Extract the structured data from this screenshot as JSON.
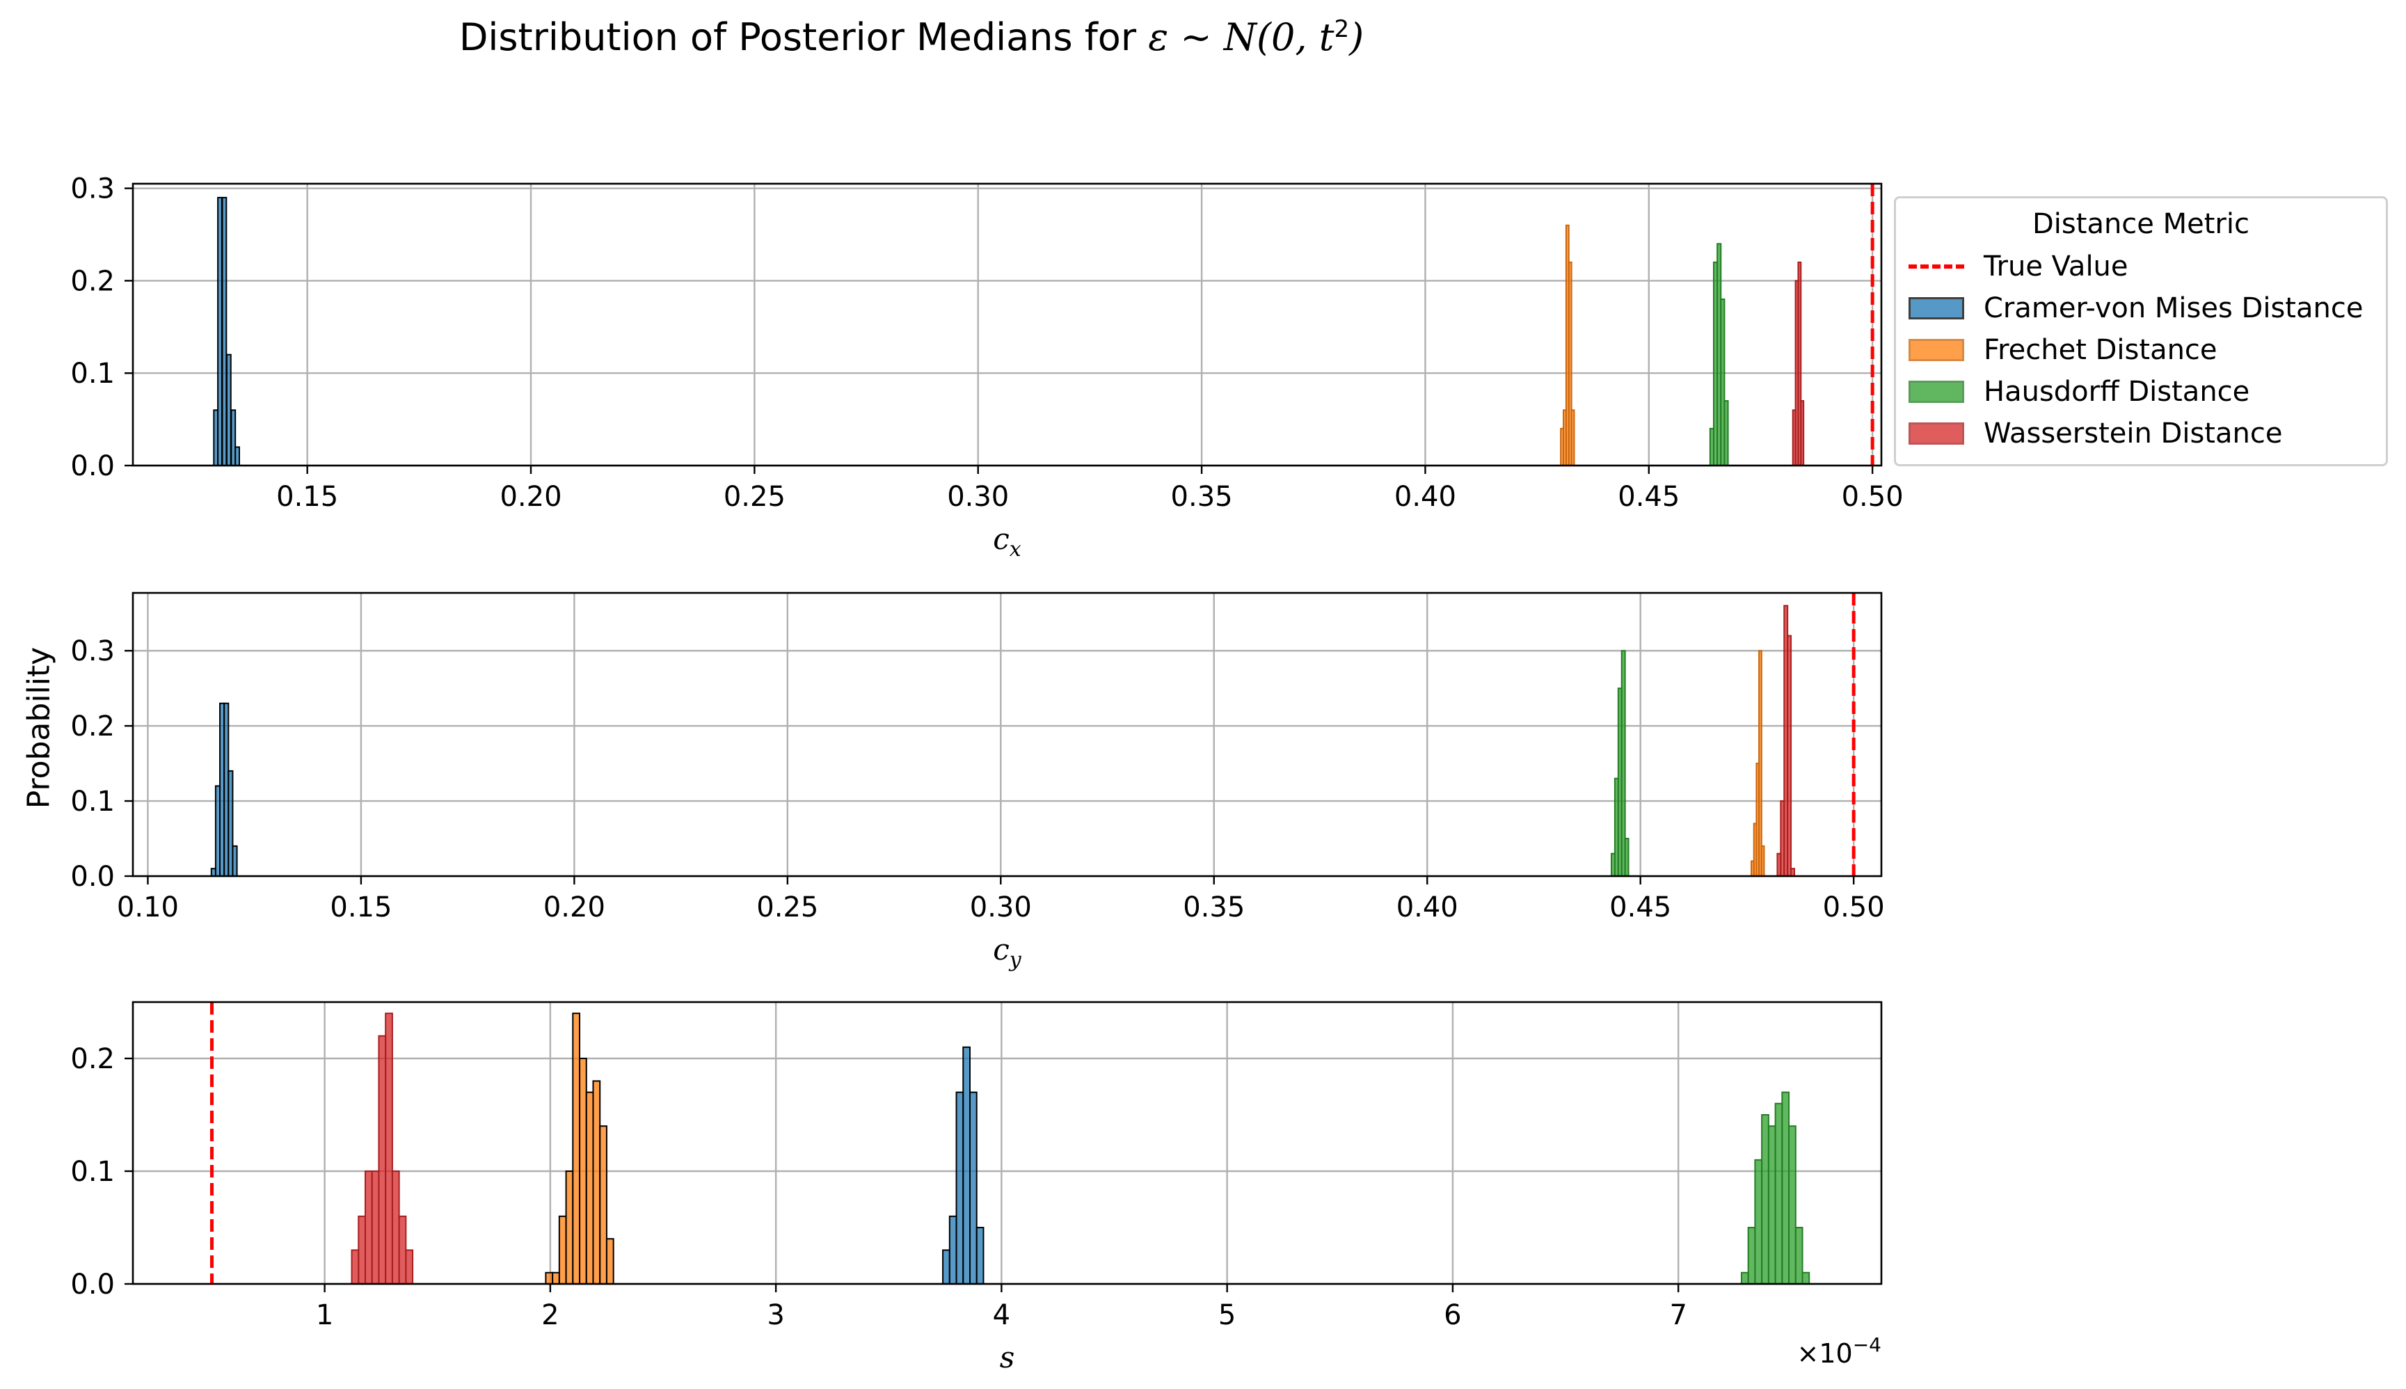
{
  "title_prefix": "Distribution of Posterior Medians for ",
  "title_math": "ε ~ N(0, t",
  "title_exp": "2",
  "title_close": ")",
  "ylabel": "Probability",
  "legend": {
    "title": "Distance Metric",
    "true_value_label": "True Value"
  },
  "colors": {
    "true_value": "#ff0000",
    "grid": "#b0b0b0"
  },
  "chart_data": [
    {
      "type": "bar",
      "subplot": "c_x",
      "xlabel": "c_x",
      "xlim": [
        0.111,
        0.502
      ],
      "ylim": [
        0,
        0.305
      ],
      "xticks": [
        0.15,
        0.2,
        0.25,
        0.3,
        0.35,
        0.4,
        0.45,
        0.5
      ],
      "xticklabels": [
        "0.15",
        "0.20",
        "0.25",
        "0.30",
        "0.35",
        "0.40",
        "0.45",
        "0.50"
      ],
      "yticks": [
        0.0,
        0.1,
        0.2,
        0.3
      ],
      "yticklabels": [
        "0.0",
        "0.1",
        "0.2",
        "0.3"
      ],
      "true_value": 0.5,
      "grid": true,
      "legend_position": "outside right",
      "series": [
        {
          "name": "Cramer-von Mises Distance",
          "color": "#1f77b4",
          "edge": "#000000",
          "bins": [
            [
              0.1291,
              0.06
            ],
            [
              0.13,
              0.29
            ],
            [
              0.131,
              0.29
            ],
            [
              0.132,
              0.12
            ],
            [
              0.133,
              0.06
            ],
            [
              0.1339,
              0.02
            ]
          ]
        },
        {
          "name": "Frechet Distance",
          "color": "#ff7f0e",
          "edge": "#c9650b",
          "bins": [
            [
              0.4303,
              0.04
            ],
            [
              0.4309,
              0.06
            ],
            [
              0.4315,
              0.26
            ],
            [
              0.4321,
              0.22
            ],
            [
              0.4327,
              0.06
            ]
          ]
        },
        {
          "name": "Hausdorff Distance",
          "color": "#2ca02c",
          "edge": "#237d23",
          "bins": [
            [
              0.4637,
              0.04
            ],
            [
              0.4645,
              0.22
            ],
            [
              0.4653,
              0.24
            ],
            [
              0.4661,
              0.18
            ],
            [
              0.4669,
              0.07
            ]
          ]
        },
        {
          "name": "Wasserstein Distance",
          "color": "#d62728",
          "edge": "#a81e1f",
          "bins": [
            [
              0.4822,
              0.06
            ],
            [
              0.4828,
              0.2
            ],
            [
              0.4834,
              0.22
            ],
            [
              0.484,
              0.07
            ]
          ]
        }
      ]
    },
    {
      "type": "bar",
      "subplot": "c_y",
      "xlabel": "c_y",
      "xlim": [
        0.0965,
        0.5065
      ],
      "ylim": [
        0,
        0.377
      ],
      "xticks": [
        0.1,
        0.15,
        0.2,
        0.25,
        0.3,
        0.35,
        0.4,
        0.45,
        0.5
      ],
      "xticklabels": [
        "0.10",
        "0.15",
        "0.20",
        "0.25",
        "0.30",
        "0.35",
        "0.40",
        "0.45",
        "0.50"
      ],
      "yticks": [
        0.0,
        0.1,
        0.2,
        0.3
      ],
      "yticklabels": [
        "0.0",
        "0.1",
        "0.2",
        "0.3"
      ],
      "true_value": 0.5,
      "grid": true,
      "series": [
        {
          "name": "Cramer-von Mises Distance",
          "color": "#1f77b4",
          "edge": "#000000",
          "bins": [
            [
              0.1149,
              0.01
            ],
            [
              0.1159,
              0.12
            ],
            [
              0.1169,
              0.23
            ],
            [
              0.1179,
              0.23
            ],
            [
              0.1189,
              0.14
            ],
            [
              0.1199,
              0.04
            ]
          ]
        },
        {
          "name": "Hausdorff Distance",
          "color": "#2ca02c",
          "edge": "#237d23",
          "bins": [
            [
              0.4432,
              0.03
            ],
            [
              0.444,
              0.13
            ],
            [
              0.4448,
              0.25
            ],
            [
              0.4456,
              0.3
            ],
            [
              0.4464,
              0.05
            ]
          ]
        },
        {
          "name": "Frechet Distance",
          "color": "#ff7f0e",
          "edge": "#c9650b",
          "bins": [
            [
              0.476,
              0.02
            ],
            [
              0.4766,
              0.07
            ],
            [
              0.4772,
              0.15
            ],
            [
              0.4778,
              0.3
            ],
            [
              0.4784,
              0.04
            ]
          ]
        },
        {
          "name": "Wasserstein Distance",
          "color": "#d62728",
          "edge": "#a81e1f",
          "bins": [
            [
              0.4821,
              0.03
            ],
            [
              0.4829,
              0.1
            ],
            [
              0.4837,
              0.36
            ],
            [
              0.4845,
              0.32
            ],
            [
              0.4853,
              0.01
            ]
          ]
        }
      ]
    },
    {
      "type": "bar",
      "subplot": "s",
      "xlabel": "s",
      "xlim": [
        0.15,
        7.9
      ],
      "ylim": [
        0,
        0.25
      ],
      "xticks": [
        1,
        2,
        3,
        4,
        5,
        6,
        7
      ],
      "xticklabels": [
        "1",
        "2",
        "3",
        "4",
        "5",
        "6",
        "7"
      ],
      "yticks": [
        0.0,
        0.1,
        0.2
      ],
      "yticklabels": [
        "0.0",
        "0.1",
        "0.2"
      ],
      "x_multiplier": "×10",
      "x_multiplier_exp": "−4",
      "true_value": 0.5,
      "grid": true,
      "series": [
        {
          "name": "Wasserstein Distance",
          "color": "#d62728",
          "edge": "#a81e1f",
          "bins": [
            [
              1.12,
              0.03
            ],
            [
              1.15,
              0.06
            ],
            [
              1.18,
              0.1
            ],
            [
              1.21,
              0.1
            ],
            [
              1.24,
              0.22
            ],
            [
              1.27,
              0.24
            ],
            [
              1.3,
              0.1
            ],
            [
              1.33,
              0.06
            ],
            [
              1.36,
              0.03
            ]
          ]
        },
        {
          "name": "Frechet Distance",
          "color": "#ff7f0e",
          "edge": "#000000",
          "bins": [
            [
              1.98,
              0.01
            ],
            [
              2.01,
              0.01
            ],
            [
              2.04,
              0.06
            ],
            [
              2.07,
              0.1
            ],
            [
              2.1,
              0.24
            ],
            [
              2.13,
              0.2
            ],
            [
              2.16,
              0.17
            ],
            [
              2.19,
              0.18
            ],
            [
              2.22,
              0.14
            ],
            [
              2.25,
              0.04
            ]
          ]
        },
        {
          "name": "Cramer-von Mises Distance",
          "color": "#1f77b4",
          "edge": "#000000",
          "bins": [
            [
              3.74,
              0.03
            ],
            [
              3.77,
              0.06
            ],
            [
              3.8,
              0.17
            ],
            [
              3.83,
              0.21
            ],
            [
              3.86,
              0.17
            ],
            [
              3.89,
              0.05
            ]
          ]
        },
        {
          "name": "Hausdorff Distance",
          "color": "#2ca02c",
          "edge": "#237d23",
          "bins": [
            [
              7.28,
              0.01
            ],
            [
              7.31,
              0.05
            ],
            [
              7.34,
              0.11
            ],
            [
              7.37,
              0.15
            ],
            [
              7.4,
              0.14
            ],
            [
              7.43,
              0.16
            ],
            [
              7.46,
              0.17
            ],
            [
              7.49,
              0.14
            ],
            [
              7.52,
              0.05
            ],
            [
              7.55,
              0.01
            ]
          ]
        }
      ]
    }
  ]
}
